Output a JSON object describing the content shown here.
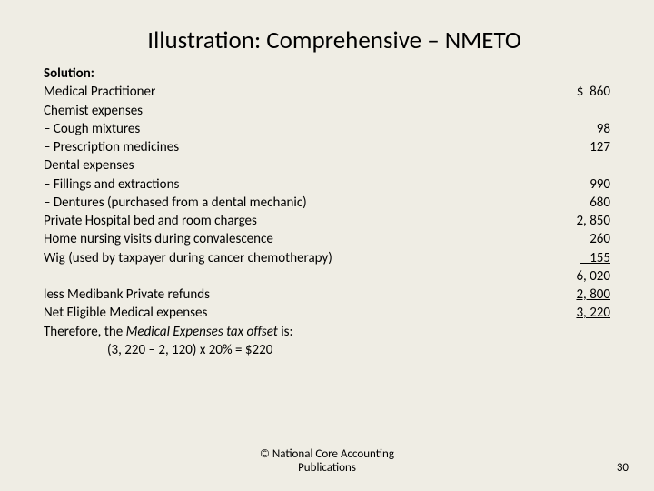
{
  "title": "Illustration: Comprehensive – NMETO",
  "solution_label": "Solution:",
  "rows": [
    {
      "label": "Medical Practitioner",
      "amount": "$  860"
    },
    {
      "label": "Chemist expenses",
      "amount": ""
    },
    {
      "label": "– Cough mixtures",
      "amount": "98"
    },
    {
      "label": "– Prescription medicines",
      "amount": "127"
    },
    {
      "label": "Dental expenses",
      "amount": ""
    },
    {
      "label": "– Fillings and extractions",
      "amount": "990"
    },
    {
      "label": "– Dentures (purchased from a dental mechanic)",
      "amount": "680"
    },
    {
      "label": "Private Hospital bed and room charges",
      "amount": "2, 850"
    },
    {
      "label": "Home nursing visits during convalescence",
      "amount": "260"
    },
    {
      "label": "Wig (used by taxpayer during cancer chemotherapy)",
      "amount": "   155",
      "style": "underline-top"
    },
    {
      "label": "",
      "amount": "6, 020"
    },
    {
      "label": "less Medibank Private refunds",
      "amount": "2, 800",
      "style": "underline-top"
    },
    {
      "label": "Net Eligible Medical expenses",
      "amount": "3, 220",
      "style": "underline-top"
    }
  ],
  "therefore_line": "Therefore, the Medical Expenses tax offset is:",
  "calc_line": "(3, 220 – 2, 120)    x    20%           =                 $220",
  "footer": "© National Core Accounting Publications",
  "page_number": "30",
  "therefore_italic_part": "Medical Expenses tax offset"
}
